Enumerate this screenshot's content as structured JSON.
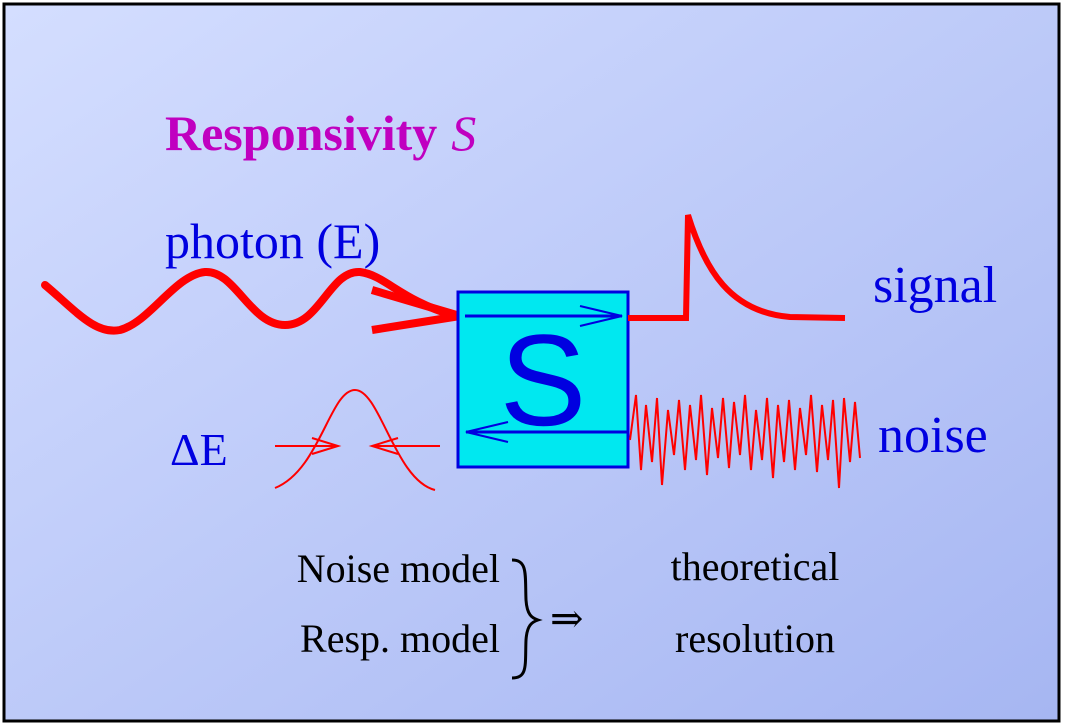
{
  "title": {
    "text": "Responsivity",
    "symbol": "S"
  },
  "labels": {
    "photon": "photon (E)",
    "signal": "signal",
    "noise": "noise",
    "delta_e": "ΔE",
    "box": "S"
  },
  "summary": {
    "left": [
      "Noise model",
      "Resp. model"
    ],
    "arrow": "⇒",
    "right": [
      "theoretical",
      "resolution"
    ]
  }
}
